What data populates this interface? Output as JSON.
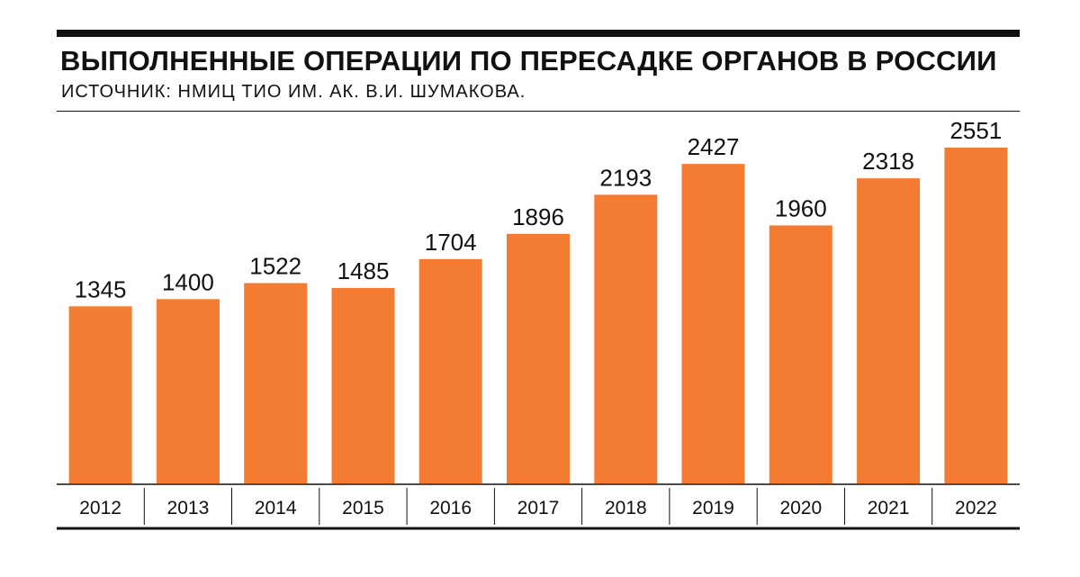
{
  "header": {
    "title": "ВЫПОЛНЕННЫЕ ОПЕРАЦИИ ПО ПЕРЕСАДКЕ ОРГАНОВ В РОССИИ",
    "source": "ИСТОЧНИК: НМИЦ ТИО ИМ. АК. В.И. ШУМАКОВА."
  },
  "colors": {
    "bar": "#F47B32",
    "ink": "#111111"
  },
  "chart_data": {
    "type": "bar",
    "title": "ВЫПОЛНЕННЫЕ ОПЕРАЦИИ ПО ПЕРЕСАДКЕ ОРГАНОВ В РОССИИ",
    "subtitle": "ИСТОЧНИК: НМИЦ ТИО ИМ. АК. В.И. ШУМАКОВА.",
    "xlabel": "",
    "ylabel": "",
    "categories": [
      "2012",
      "2013",
      "2014",
      "2015",
      "2016",
      "2017",
      "2018",
      "2019",
      "2020",
      "2021",
      "2022"
    ],
    "values": [
      1345,
      1400,
      1522,
      1485,
      1704,
      1896,
      2193,
      2427,
      1960,
      2318,
      2551
    ],
    "ylim": [
      0,
      2551
    ],
    "grid": false,
    "legend": "none",
    "data_labels": true
  }
}
